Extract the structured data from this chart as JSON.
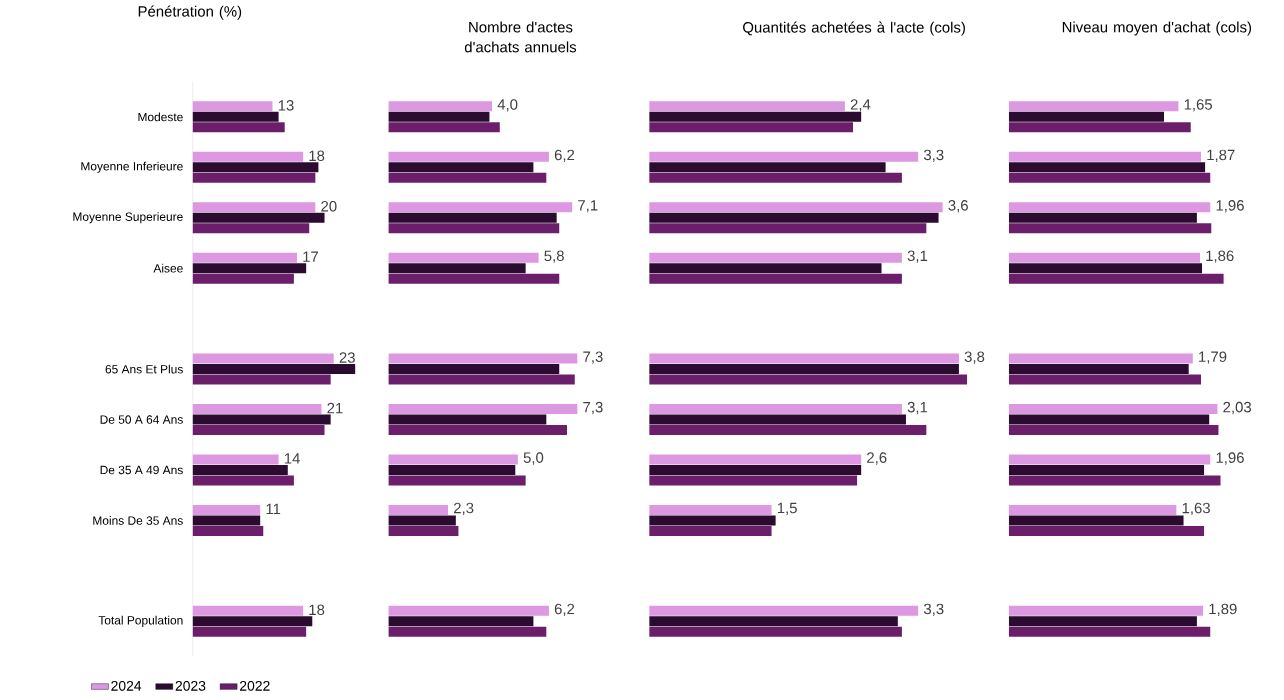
{
  "chart_data": [
    {
      "type": "bar",
      "orientation": "horizontal",
      "title": "Pénétration (%)",
      "categories": [
        "Modeste",
        "Moyenne Inferieure",
        "Moyenne Superieure",
        "Aisee",
        null,
        "65 Ans Et Plus",
        "De 50 A 64 Ans",
        "De 35 A 49 Ans",
        "Moins De 35 Ans",
        null,
        "Total Population"
      ],
      "legend": "bottom",
      "tick_labels": "y",
      "series": [
        {
          "name": "2024",
          "color": "#dc98e0",
          "values": [
            13,
            18,
            20,
            17,
            null,
            23,
            21,
            14,
            11,
            null,
            18
          ],
          "value_labels": [
            "13",
            "18",
            "20",
            "17",
            null,
            "23",
            "21",
            "14",
            "11",
            null,
            "18"
          ]
        },
        {
          "name": "2023",
          "color": "#2b0b30",
          "values": [
            14,
            20.5,
            21.5,
            18.5,
            null,
            26.5,
            22.5,
            15.5,
            11,
            null,
            19.5
          ]
        },
        {
          "name": "2022",
          "color": "#6b1f6b",
          "values": [
            15,
            20,
            19,
            16.5,
            null,
            22.5,
            21.5,
            16.5,
            11.5,
            null,
            18.5
          ]
        }
      ]
    },
    {
      "type": "bar",
      "orientation": "horizontal",
      "title": "Nombre d'actes d'achats annuels",
      "categories": [
        null,
        null,
        null,
        null,
        null,
        null,
        null,
        null,
        null,
        null,
        null
      ],
      "tick_labels": false,
      "series": [
        {
          "color": "#dc98e0",
          "values": [
            4.0,
            6.2,
            7.1,
            5.8,
            null,
            7.3,
            7.3,
            5.0,
            2.3,
            null,
            6.2
          ],
          "value_labels": [
            "4,0",
            "6,2",
            "7,1",
            "5,8",
            null,
            "7,3",
            "7,3",
            "5,0",
            "2,3",
            null,
            "6,2"
          ]
        },
        {
          "color": "#2b0b30",
          "values": [
            3.9,
            5.6,
            6.5,
            5.3,
            null,
            6.6,
            6.1,
            4.9,
            2.6,
            null,
            5.6
          ]
        },
        {
          "color": "#6b1f6b",
          "values": [
            4.3,
            6.1,
            6.6,
            6.6,
            null,
            7.2,
            6.9,
            5.3,
            2.7,
            null,
            6.1
          ]
        }
      ]
    },
    {
      "type": "bar",
      "orientation": "horizontal",
      "title": "Quantités achetées à l'acte (cols)",
      "categories": [
        null,
        null,
        null,
        null,
        null,
        null,
        null,
        null,
        null,
        null,
        null
      ],
      "tick_labels": false,
      "series": [
        {
          "color": "#dc98e0",
          "values": [
            2.4,
            3.3,
            3.6,
            3.1,
            null,
            3.8,
            3.1,
            2.6,
            1.5,
            null,
            3.3
          ],
          "value_labels": [
            "2,4",
            "3,3",
            "3,6",
            "3,1",
            null,
            "3,8",
            "3,1",
            "2,6",
            "1,5",
            null,
            "3,3"
          ]
        },
        {
          "color": "#2b0b30",
          "values": [
            2.6,
            2.9,
            3.55,
            2.85,
            null,
            3.8,
            3.15,
            2.6,
            1.55,
            null,
            3.05
          ]
        },
        {
          "color": "#6b1f6b",
          "values": [
            2.5,
            3.1,
            3.4,
            3.1,
            null,
            3.9,
            3.4,
            2.55,
            1.5,
            null,
            3.1
          ]
        }
      ]
    },
    {
      "type": "bar",
      "orientation": "horizontal",
      "title": "Niveau moyen d'achat (cols)",
      "categories": [
        null,
        null,
        null,
        null,
        null,
        null,
        null,
        null,
        null,
        null,
        null
      ],
      "tick_labels": false,
      "series": [
        {
          "color": "#dc98e0",
          "values": [
            1.65,
            1.87,
            1.96,
            1.86,
            null,
            1.79,
            2.03,
            1.96,
            1.63,
            null,
            1.89
          ],
          "value_labels": [
            "1,65",
            "1,87",
            "1,96",
            "1,86",
            null,
            "1,79",
            "2,03",
            "1,96",
            "1,63",
            null,
            "1,89"
          ]
        },
        {
          "color": "#2b0b30",
          "values": [
            1.51,
            1.91,
            1.83,
            1.88,
            null,
            1.75,
            1.95,
            1.9,
            1.7,
            null,
            1.83
          ]
        },
        {
          "color": "#6b1f6b",
          "values": [
            1.77,
            1.96,
            1.97,
            2.09,
            null,
            1.87,
            2.04,
            2.06,
            1.9,
            null,
            1.96
          ]
        }
      ]
    }
  ]
}
